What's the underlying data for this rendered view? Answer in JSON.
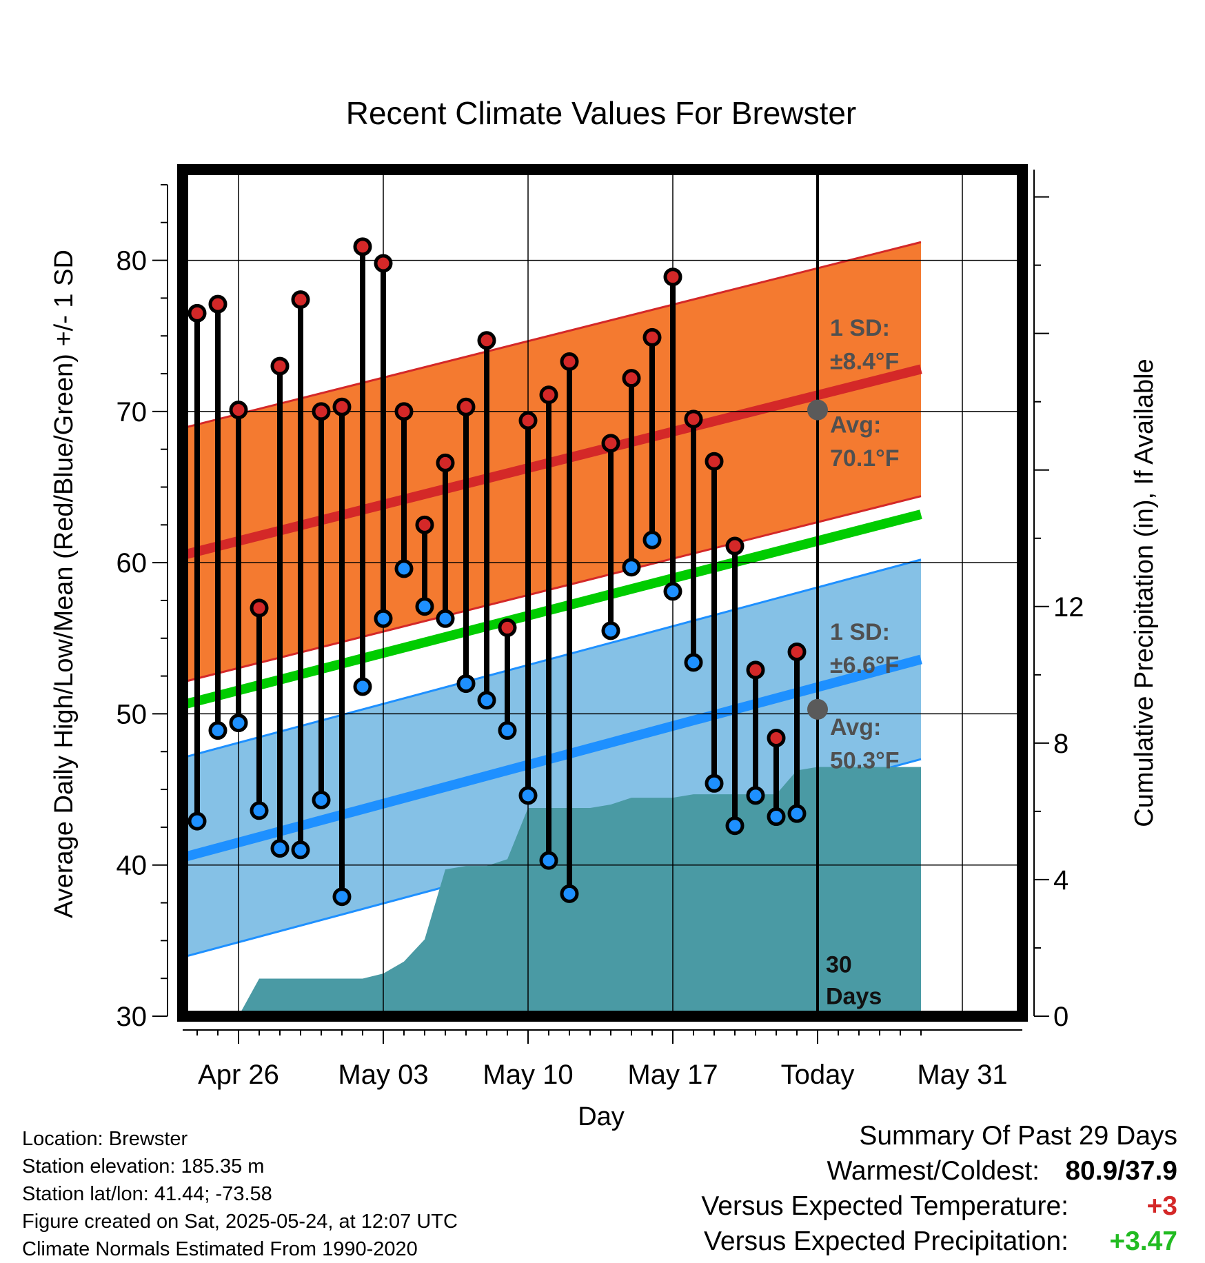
{
  "chart_data": {
    "type": "line",
    "title": "Recent Climate Values For Brewster",
    "xlabel": "Day",
    "ylabel": "Average Daily High/Low/Mean (Red/Blue/Green) +/- 1 SD",
    "y2label": "Cumulative Precipitation (in), If Available",
    "x_ticks": [
      "Apr 26",
      "May 03",
      "May 10",
      "May 17",
      "Today",
      "May 31"
    ],
    "y_ticks": [
      30,
      40,
      50,
      60,
      70,
      80
    ],
    "y2_ticks": [
      0,
      4,
      8,
      12
    ],
    "ylim": [
      30,
      86
    ],
    "y2lim": [
      0,
      24.8
    ],
    "grid": true,
    "days": [
      "Apr 24",
      "Apr 25",
      "Apr 26",
      "Apr 27",
      "Apr 28",
      "Apr 29",
      "Apr 30",
      "May 01",
      "May 02",
      "May 03",
      "May 04",
      "May 05",
      "May 06",
      "May 07",
      "May 08",
      "May 09",
      "May 10",
      "May 11",
      "May 12",
      "May 13",
      "May 14",
      "May 15",
      "May 16",
      "May 17",
      "May 18",
      "May 19",
      "May 20",
      "May 21",
      "May 22",
      "May 23"
    ],
    "highs": [
      76.5,
      77.1,
      70.1,
      57.0,
      73.0,
      77.4,
      70.0,
      70.3,
      80.9,
      79.8,
      70.0,
      62.5,
      66.6,
      70.3,
      74.7,
      55.7,
      69.4,
      71.1,
      73.3,
      null,
      67.9,
      72.2,
      74.9,
      78.9,
      69.5,
      66.7,
      61.1,
      52.9,
      48.4,
      54.1
    ],
    "lows": [
      42.9,
      48.9,
      49.4,
      43.6,
      41.1,
      41.0,
      44.3,
      37.9,
      51.8,
      56.3,
      59.6,
      57.1,
      56.3,
      52.0,
      50.9,
      48.9,
      44.6,
      40.3,
      38.1,
      null,
      55.5,
      59.7,
      61.5,
      58.1,
      53.4,
      45.4,
      42.6,
      44.6,
      43.2,
      43.4
    ],
    "precip_cumulative": [
      0.0,
      0.0,
      1.1,
      1.1,
      1.1,
      1.1,
      1.1,
      1.1,
      1.25,
      1.6,
      2.25,
      4.3,
      4.4,
      4.4,
      4.6,
      6.1,
      6.1,
      6.1,
      6.1,
      6.2,
      6.4,
      6.4,
      6.4,
      6.5,
      6.5,
      6.5,
      6.5,
      6.5,
      7.2,
      7.3
    ],
    "normals": {
      "high_avg_start": 60.5,
      "high_avg_end": 72.8,
      "low_avg_start": 40.5,
      "low_avg_end": 53.6,
      "mean_avg_start": 50.6,
      "mean_avg_end": 63.2,
      "high_sd": 8.4,
      "low_sd": 6.6,
      "today_high_avg": 70.1,
      "today_low_avg": 50.3
    },
    "annotations": {
      "high_sd_label": "1 SD:",
      "high_sd_value": "±8.4°F",
      "high_avg_label": "Avg:",
      "high_avg_value": "70.1°F",
      "low_sd_label": "1 SD:",
      "low_sd_value": "±6.6°F",
      "low_avg_label": "Avg:",
      "low_avg_value": "50.3°F",
      "window_number": "30",
      "window_unit": "Days"
    },
    "colors": {
      "high_band": "#f47a30",
      "high_line": "#d42828",
      "low_band": "#85c1e6",
      "low_line": "#1e90ff",
      "mean_line": "#00cc00",
      "precip": "#4a9aa4",
      "high_dot": "#d42828",
      "low_dot": "#1e90ff"
    }
  },
  "location": {
    "location_line": "Location: Brewster",
    "elevation_line": "Station elevation: 185.35 m",
    "latlon_line": "Station lat/lon: 41.44; -73.58",
    "created_line": "Figure created on Sat, 2025-05-24, at 12:07 UTC",
    "normals_line": "Climate Normals Estimated From 1990-2020"
  },
  "summary": {
    "heading": "Summary Of Past 29 Days",
    "warm_cold_label": "Warmest/Coldest:",
    "warm_cold_value": "80.9/37.9",
    "temp_label": "Versus Expected Temperature:",
    "temp_value": "+3",
    "precip_label": "Versus Expected Precipitation:",
    "precip_value": "+3.47"
  }
}
